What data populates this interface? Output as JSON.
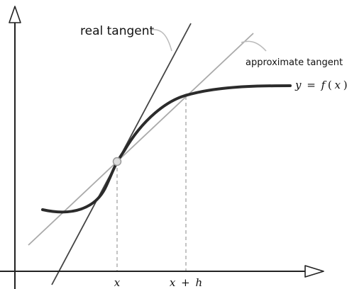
{
  "labels": {
    "real_tangent": "real tangent",
    "approx_tangent": "approximate tangent",
    "curve": {
      "y": "y",
      "eq": "=",
      "f": "f",
      "open": "(",
      "x": "x",
      "close": ")"
    },
    "tick_x": "x",
    "tick_xh": {
      "x": "x",
      "plus": "+",
      "h": "h"
    }
  },
  "colors": {
    "axis": "#222222",
    "curve": "#2b2b2b",
    "real_tangent": "#444444",
    "approx_tangent": "#aaaaaa",
    "dashed_guide": "#aaaaaa",
    "leader": "#bbbbbb",
    "point_fill": "#dddddd",
    "point_stroke": "#999999"
  }
}
